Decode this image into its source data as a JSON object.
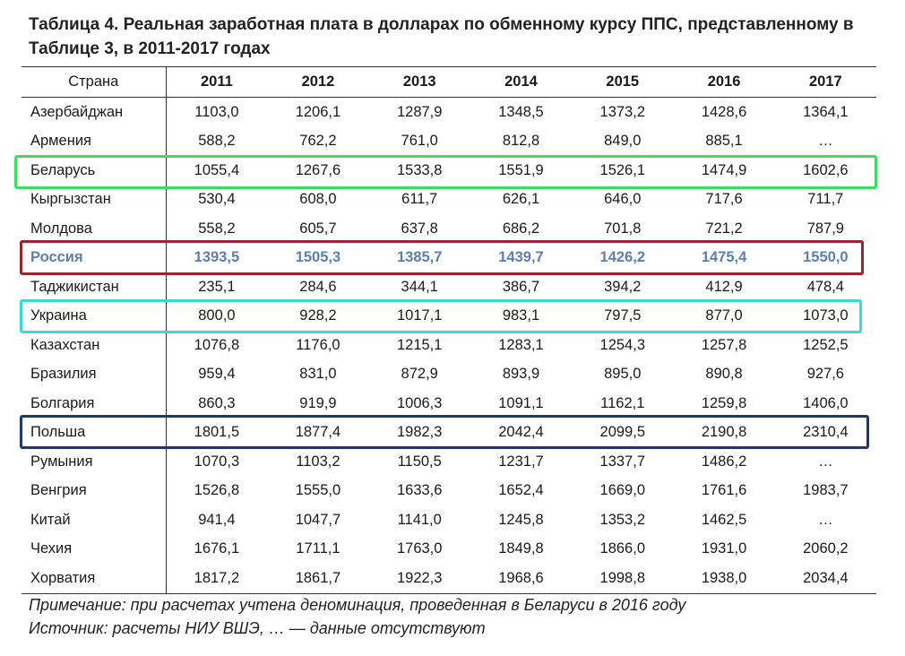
{
  "title": "Таблица 4. Реальная заработная плата в долларах по обменному курсу ППС, представленному в Таблице 3, в 2011-2017 годах",
  "columns": [
    "Страна",
    "2011",
    "2012",
    "2013",
    "2014",
    "2015",
    "2016",
    "2017"
  ],
  "rows": [
    {
      "country": "Азербайджан",
      "values": [
        "1103,0",
        "1206,1",
        "1287,9",
        "1348,5",
        "1373,2",
        "1428,6",
        "1364,1"
      ]
    },
    {
      "country": "Армения",
      "values": [
        "588,2",
        "762,2",
        "761,0",
        "812,8",
        "849,0",
        "885,1",
        "…"
      ]
    },
    {
      "country": "Беларусь",
      "values": [
        "1055,4",
        "1267,6",
        "1533,8",
        "1551,9",
        "1526,1",
        "1474,9",
        "1602,6"
      ]
    },
    {
      "country": "Кыргызстан",
      "values": [
        "530,4",
        "608,0",
        "611,7",
        "626,1",
        "646,0",
        "717,6",
        "711,7"
      ]
    },
    {
      "country": "Молдова",
      "values": [
        "558,2",
        "605,7",
        "637,8",
        "686,2",
        "701,8",
        "721,2",
        "787,9"
      ]
    },
    {
      "country": "Россия",
      "values": [
        "1393,5",
        "1505,3",
        "1385,7",
        "1439,7",
        "1426,2",
        "1475,4",
        "1550,0"
      ]
    },
    {
      "country": "Таджикистан",
      "values": [
        "235,1",
        "284,6",
        "344,1",
        "386,7",
        "394,2",
        "412,9",
        "478,4"
      ]
    },
    {
      "country": "Украина",
      "values": [
        "800,0",
        "928,2",
        "1017,1",
        "983,1",
        "797,5",
        "877,0",
        "1073,0"
      ]
    },
    {
      "country": "Казахстан",
      "values": [
        "1076,8",
        "1176,0",
        "1215,1",
        "1283,1",
        "1254,3",
        "1257,8",
        "1252,5"
      ]
    },
    {
      "country": "Бразилия",
      "values": [
        "959,4",
        "831,0",
        "872,9",
        "893,9",
        "895,0",
        "890,8",
        "927,6"
      ]
    },
    {
      "country": "Болгария",
      "values": [
        "860,3",
        "919,9",
        "1006,3",
        "1091,1",
        "1162,1",
        "1259,8",
        "1406,0"
      ]
    },
    {
      "country": "Польша",
      "values": [
        "1801,5",
        "1877,4",
        "1982,3",
        "2042,4",
        "2099,5",
        "2190,8",
        "2310,4"
      ]
    },
    {
      "country": "Румыния",
      "values": [
        "1070,3",
        "1103,2",
        "1150,5",
        "1231,7",
        "1337,7",
        "1486,2",
        "…"
      ]
    },
    {
      "country": "Венгрия",
      "values": [
        "1526,8",
        "1555,0",
        "1633,6",
        "1652,4",
        "1669,0",
        "1761,6",
        "1983,7"
      ]
    },
    {
      "country": "Китай",
      "values": [
        "941,4",
        "1047,7",
        "1141,0",
        "1245,8",
        "1353,2",
        "1462,5",
        "…"
      ]
    },
    {
      "country": "Чехия",
      "values": [
        "1676,1",
        "1711,1",
        "1763,0",
        "1849,8",
        "1866,0",
        "1931,0",
        "2060,2"
      ]
    },
    {
      "country": "Хорватия",
      "values": [
        "1817,2",
        "1861,7",
        "1922,3",
        "1968,6",
        "1998,8",
        "1938,0",
        "2034,4"
      ]
    }
  ],
  "highlight_colors": {
    "Беларусь": "#3ddc5c",
    "Россия": "#9b2431",
    "Украина": "#3fd5e0",
    "Польша": "#1f3864"
  },
  "notes": [
    "Примечание: при расчетах учтена деноминация, проведенная в Беларуси в 2016 году",
    "Источник: расчеты НИУ ВШЭ, … — данные отсутствуют"
  ]
}
